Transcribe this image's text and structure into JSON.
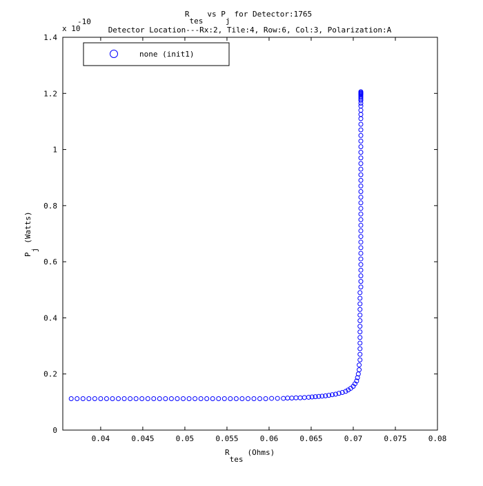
{
  "chart_data": {
    "type": "scatter",
    "title_line1": {
      "parts": [
        "R",
        "tes",
        "vs P",
        "j",
        "for Detector:1765"
      ]
    },
    "title_line2": "Detector Location---Rx:2, Tile:4, Row:6, Col:3, Polarization:A",
    "xlabel": {
      "main": "R",
      "sub": "tes",
      "rest": "(Ohms)"
    },
    "ylabel": {
      "main": "P",
      "sub": "j",
      "rest": "(Watts)"
    },
    "y_exponent": {
      "base": "x 10",
      "power": "-10"
    },
    "xlim": [
      0.0355,
      0.08
    ],
    "ylim": [
      0,
      1.4
    ],
    "x_ticks": [
      0.04,
      0.045,
      0.05,
      0.055,
      0.06,
      0.065,
      0.07,
      0.075,
      0.08
    ],
    "x_tick_labels": [
      "0.04",
      "0.045",
      "0.05",
      "0.055",
      "0.06",
      "0.065",
      "0.07",
      "0.075",
      "0.08"
    ],
    "y_ticks": [
      0,
      0.2,
      0.4,
      0.6,
      0.8,
      1.0,
      1.2,
      1.4
    ],
    "y_tick_labels": [
      "0",
      "0.2",
      "0.4",
      "0.6",
      "0.8",
      "1",
      "1.2",
      "1.4"
    ],
    "grid": false,
    "legend_position": "top-left",
    "series": [
      {
        "name": "none (init1)",
        "color": "#0000ff",
        "marker": "circle-open",
        "x": [
          0.0365,
          0.0372,
          0.0379,
          0.0386,
          0.0393,
          0.04,
          0.0407,
          0.0414,
          0.0421,
          0.0428,
          0.0435,
          0.0442,
          0.0449,
          0.0456,
          0.0463,
          0.047,
          0.0477,
          0.0484,
          0.0491,
          0.0498,
          0.0505,
          0.0512,
          0.0519,
          0.0526,
          0.0533,
          0.054,
          0.0547,
          0.0554,
          0.0561,
          0.0568,
          0.0575,
          0.0582,
          0.0589,
          0.0596,
          0.0603,
          0.061,
          0.0617,
          0.0622,
          0.0627,
          0.0632,
          0.0637,
          0.0642,
          0.0647,
          0.0651,
          0.0655,
          0.0659,
          0.0663,
          0.0667,
          0.0671,
          0.0675,
          0.0679,
          0.0683,
          0.0687,
          0.0691,
          0.0694,
          0.0697,
          0.07,
          0.0702,
          0.0704,
          0.0705,
          0.0706,
          0.0707,
          0.0707,
          0.0708,
          0.0708,
          0.0708,
          0.0708,
          0.0708,
          0.0708,
          0.0708,
          0.0708,
          0.0708,
          0.0708,
          0.0708,
          0.0708,
          0.0708,
          0.0709,
          0.0709,
          0.0709,
          0.0709,
          0.0709,
          0.0709,
          0.0709,
          0.0709,
          0.0709,
          0.0709,
          0.0709,
          0.0709,
          0.0709,
          0.0709,
          0.0709,
          0.0709,
          0.0709,
          0.0709,
          0.0709,
          0.0709,
          0.0709,
          0.0709,
          0.0709,
          0.0709,
          0.0709,
          0.0709,
          0.0709,
          0.0709,
          0.0709,
          0.0709,
          0.0709,
          0.0709,
          0.0709,
          0.0709,
          0.0709,
          0.0709,
          0.0709,
          0.0709,
          0.0709,
          0.0709,
          0.0709,
          0.0709,
          0.0709,
          0.0709
        ],
        "y": [
          0.112,
          0.112,
          0.112,
          0.112,
          0.112,
          0.112,
          0.112,
          0.112,
          0.112,
          0.112,
          0.112,
          0.112,
          0.112,
          0.112,
          0.112,
          0.112,
          0.112,
          0.112,
          0.112,
          0.112,
          0.112,
          0.112,
          0.112,
          0.112,
          0.112,
          0.112,
          0.112,
          0.112,
          0.112,
          0.112,
          0.112,
          0.112,
          0.112,
          0.112,
          0.113,
          0.113,
          0.113,
          0.114,
          0.114,
          0.115,
          0.115,
          0.116,
          0.117,
          0.118,
          0.119,
          0.12,
          0.121,
          0.122,
          0.124,
          0.126,
          0.128,
          0.131,
          0.134,
          0.138,
          0.143,
          0.149,
          0.156,
          0.165,
          0.175,
          0.187,
          0.2,
          0.215,
          0.232,
          0.25,
          0.27,
          0.29,
          0.31,
          0.33,
          0.35,
          0.37,
          0.39,
          0.41,
          0.43,
          0.45,
          0.47,
          0.49,
          0.51,
          0.53,
          0.55,
          0.57,
          0.59,
          0.61,
          0.63,
          0.65,
          0.67,
          0.69,
          0.71,
          0.73,
          0.75,
          0.77,
          0.79,
          0.81,
          0.83,
          0.85,
          0.87,
          0.89,
          0.91,
          0.93,
          0.95,
          0.97,
          0.99,
          1.01,
          1.03,
          1.05,
          1.07,
          1.09,
          1.11,
          1.125,
          1.14,
          1.155,
          1.165,
          1.175,
          1.18,
          1.185,
          1.19,
          1.195,
          1.198,
          1.2,
          1.203,
          1.206
        ]
      }
    ]
  }
}
